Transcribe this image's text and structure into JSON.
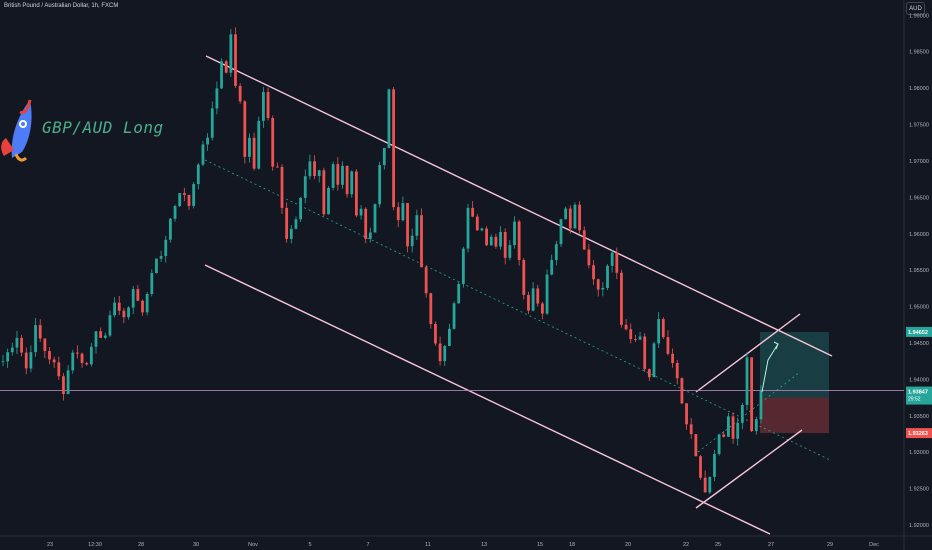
{
  "header": {
    "symbol_title": "British Pound / Australian Dollar, 1h, FXCM",
    "currency": "AUD"
  },
  "annotation": {
    "text": "GBP/AUD Long",
    "icon": "rocket-icon"
  },
  "colors": {
    "background": "#131722",
    "bull": "#26a69a",
    "bear": "#ef5350",
    "channel": "#f7c5d8",
    "midline": "#26a69a",
    "target": "#26a69a",
    "stop": "#ef5350"
  },
  "chart_data": {
    "type": "candlestick",
    "y_range": [
      1.9185,
      1.991
    ],
    "y_ticks": [
      "1.99000",
      "1.98500",
      "1.98000",
      "1.97500",
      "1.97000",
      "1.96500",
      "1.96000",
      "1.95500",
      "1.95000",
      "1.94500",
      "1.94000",
      "1.93500",
      "1.93000",
      "1.92500",
      "1.92000"
    ],
    "x_ticks": [
      "23",
      "12:30",
      "28",
      "30",
      "Nov",
      "5",
      "7",
      "11",
      "13",
      "15",
      "18",
      "20",
      "22",
      "25",
      "27",
      "29",
      "Dec"
    ],
    "price_path": [
      [
        0,
        1.9425
      ],
      [
        3,
        1.946
      ],
      [
        5,
        1.9415
      ],
      [
        7,
        1.947
      ],
      [
        9,
        1.944
      ],
      [
        11,
        1.942
      ],
      [
        13,
        1.9385
      ],
      [
        15,
        1.944
      ],
      [
        18,
        1.942
      ],
      [
        20,
        1.947
      ],
      [
        22,
        1.9455
      ],
      [
        24,
        1.951
      ],
      [
        26,
        1.948
      ],
      [
        28,
        1.9525
      ],
      [
        30,
        1.949
      ],
      [
        32,
        1.955
      ],
      [
        34,
        1.957
      ],
      [
        36,
        1.962
      ],
      [
        38,
        1.966
      ],
      [
        40,
        1.964
      ],
      [
        42,
        1.97
      ],
      [
        44,
        1.9735
      ],
      [
        46,
        1.98
      ],
      [
        47,
        1.984
      ],
      [
        48,
        1.982
      ],
      [
        49,
        1.9875
      ],
      [
        50,
        1.98
      ],
      [
        51,
        1.978
      ],
      [
        52,
        1.971
      ],
      [
        53,
        1.9735
      ],
      [
        54,
        1.969
      ],
      [
        55,
        1.976
      ],
      [
        56,
        1.98
      ],
      [
        57,
        1.976
      ],
      [
        58,
        1.969
      ],
      [
        59,
        1.969
      ],
      [
        60,
        1.963
      ],
      [
        61,
        1.9595
      ],
      [
        63,
        1.962
      ],
      [
        64,
        1.965
      ],
      [
        65,
        1.9675
      ],
      [
        66,
        1.97
      ],
      [
        67,
        1.968
      ],
      [
        68,
        1.969
      ],
      [
        69,
        1.963
      ],
      [
        70,
        1.966
      ],
      [
        71,
        1.97
      ],
      [
        72,
        1.967
      ],
      [
        73,
        1.969
      ],
      [
        74,
        1.965
      ],
      [
        75,
        1.968
      ],
      [
        76,
        1.962
      ],
      [
        77,
        1.963
      ],
      [
        78,
        1.959
      ],
      [
        79,
        1.96
      ],
      [
        80,
        1.964
      ],
      [
        81,
        1.97
      ],
      [
        82,
        1.972
      ],
      [
        83,
        1.98
      ],
      [
        84,
        1.964
      ],
      [
        85,
        1.962
      ],
      [
        86,
        1.964
      ],
      [
        87,
        1.958
      ],
      [
        88,
        1.96
      ],
      [
        89,
        1.962
      ],
      [
        90,
        1.956
      ],
      [
        91,
        1.952
      ],
      [
        92,
        1.9475
      ],
      [
        93,
        1.945
      ],
      [
        94,
        1.943
      ],
      [
        95,
        1.944
      ],
      [
        96,
        1.947
      ],
      [
        97,
        1.95
      ],
      [
        98,
        1.953
      ],
      [
        99,
        1.958
      ],
      [
        100,
        1.964
      ],
      [
        101,
        1.962
      ],
      [
        102,
        1.96
      ],
      [
        103,
        1.961
      ],
      [
        104,
        1.959
      ],
      [
        105,
        1.96
      ],
      [
        106,
        1.958
      ],
      [
        107,
        1.96
      ],
      [
        108,
        1.9565
      ],
      [
        109,
        1.958
      ],
      [
        110,
        1.962
      ],
      [
        111,
        1.956
      ],
      [
        112,
        1.952
      ],
      [
        113,
        1.95
      ],
      [
        114,
        1.953
      ],
      [
        115,
        1.951
      ],
      [
        116,
        1.949
      ],
      [
        117,
        1.954
      ],
      [
        118,
        1.956
      ],
      [
        119,
        1.959
      ],
      [
        120,
        1.962
      ],
      [
        121,
        1.964
      ],
      [
        122,
        1.961
      ],
      [
        123,
        1.964
      ],
      [
        124,
        1.961
      ],
      [
        125,
        1.958
      ],
      [
        126,
        1.956
      ],
      [
        127,
        1.954
      ],
      [
        128,
        1.952
      ],
      [
        129,
        1.953
      ],
      [
        130,
        1.956
      ],
      [
        131,
        1.958
      ],
      [
        132,
        1.9545
      ],
      [
        133,
        1.948
      ],
      [
        134,
        1.947
      ],
      [
        135,
        1.946
      ],
      [
        136,
        1.9455
      ],
      [
        137,
        1.946
      ],
      [
        138,
        1.942
      ],
      [
        139,
        1.94
      ],
      [
        140,
        1.945
      ],
      [
        141,
        1.948
      ],
      [
        142,
        1.946
      ],
      [
        143,
        1.943
      ],
      [
        144,
        1.942
      ],
      [
        145,
        1.94
      ],
      [
        146,
        1.937
      ],
      [
        147,
        1.934
      ],
      [
        148,
        1.933
      ],
      [
        149,
        1.929
      ],
      [
        150,
        1.927
      ],
      [
        151,
        1.925
      ],
      [
        152,
        1.927
      ],
      [
        153,
        1.93
      ],
      [
        154,
        1.933
      ],
      [
        155,
        1.932
      ],
      [
        156,
        1.935
      ],
      [
        157,
        1.932
      ],
      [
        158,
        1.934
      ],
      [
        159,
        1.936
      ],
      [
        160,
        1.943
      ],
      [
        161,
        1.933
      ],
      [
        162,
        1.935
      ],
      [
        163,
        1.9384
      ]
    ],
    "current_price": {
      "label": "1.93847",
      "countdown": "29:52",
      "value": 1.93847
    },
    "price_tags": [
      {
        "label": "1.94652",
        "value": 1.94652,
        "color": "#26a69a"
      },
      {
        "label": "1.93752",
        "value": 1.93752,
        "color": "#26a69a"
      },
      {
        "label": "1.93263",
        "value": 1.93263,
        "color": "#ef5350"
      }
    ],
    "position": {
      "entry": 1.93752,
      "target": 1.94652,
      "stop": 1.93263,
      "side": "long"
    }
  }
}
